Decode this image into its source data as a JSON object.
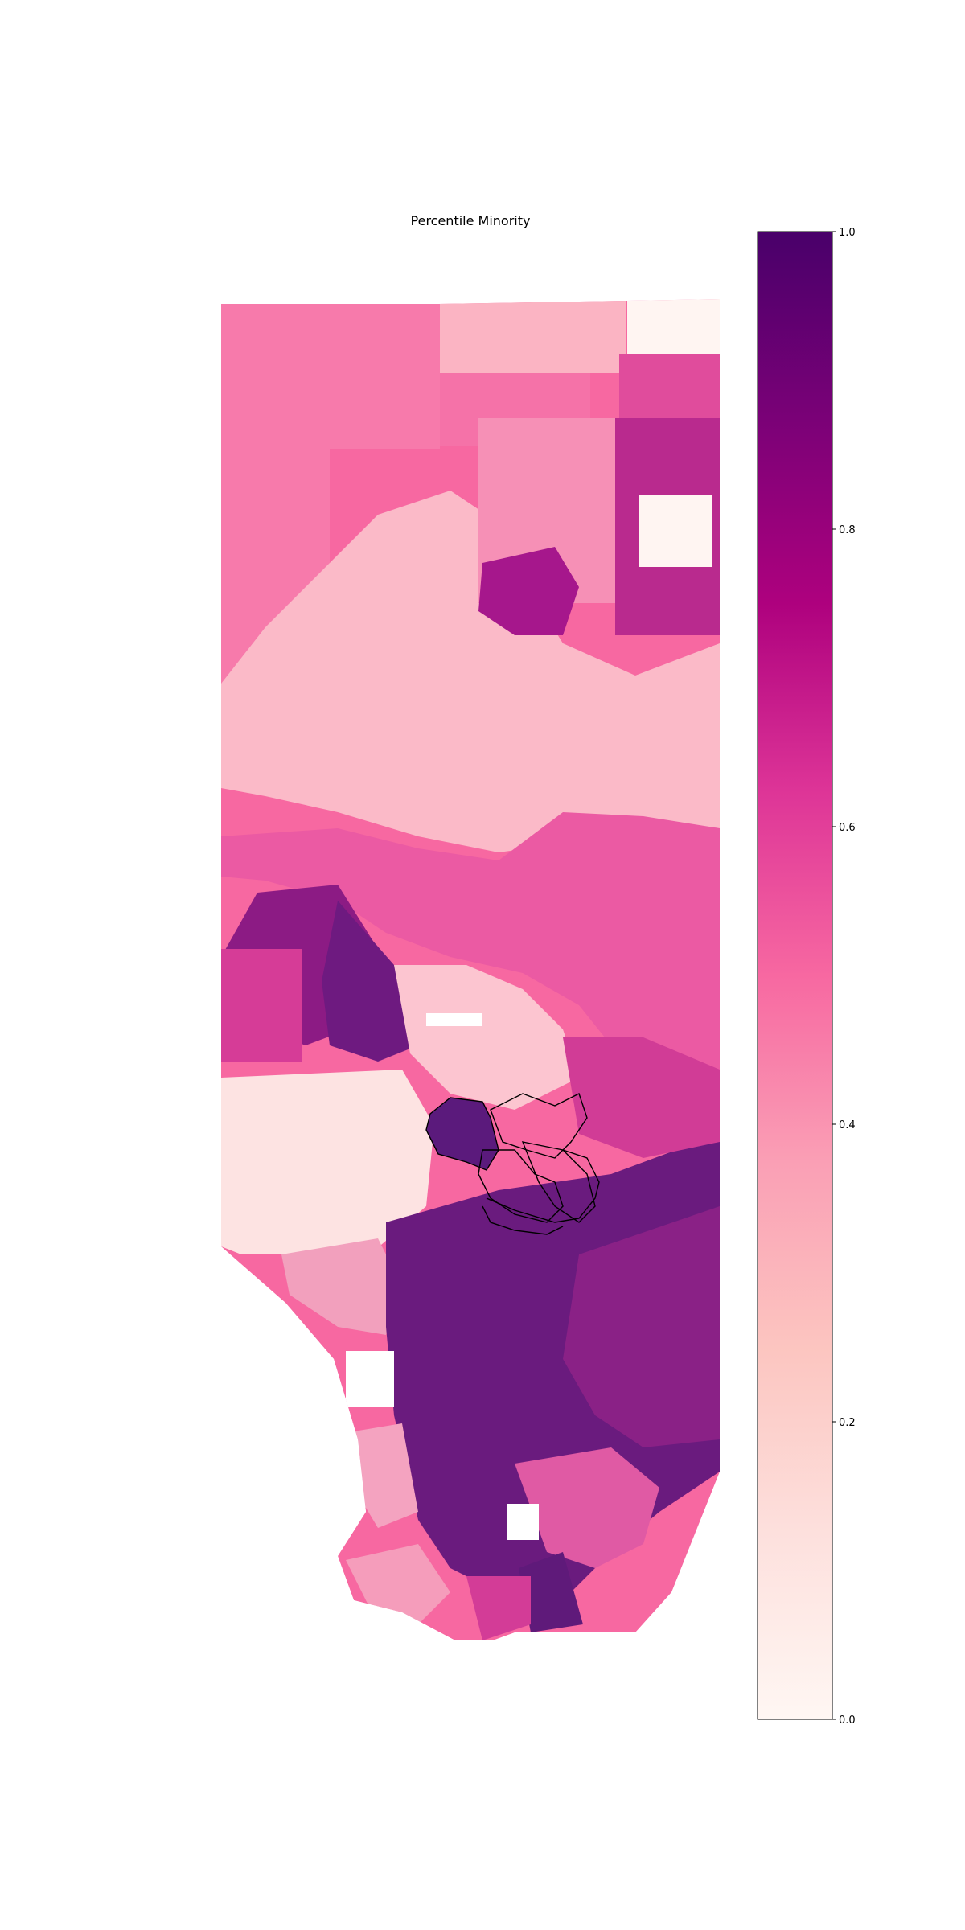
{
  "figure": {
    "title": "Percentile Minority"
  },
  "colorbar": {
    "min": 0.0,
    "max": 1.0,
    "ticks": [
      {
        "value": 0.0,
        "label": "0.0"
      },
      {
        "value": 0.2,
        "label": "0.2"
      },
      {
        "value": 0.4,
        "label": "0.4"
      },
      {
        "value": 0.6,
        "label": "0.6"
      },
      {
        "value": 0.8,
        "label": "0.8"
      },
      {
        "value": 1.0,
        "label": "1.0"
      }
    ],
    "colormap": "RdPu",
    "stops": [
      "#fff7f3",
      "#fde0dd",
      "#fcc5c0",
      "#fa9fb5",
      "#f768a1",
      "#dd3497",
      "#ae017e",
      "#7a0177",
      "#49006a"
    ]
  },
  "map": {
    "legend_outline_color": "#000000",
    "no_data_color": "#ffffff"
  }
}
